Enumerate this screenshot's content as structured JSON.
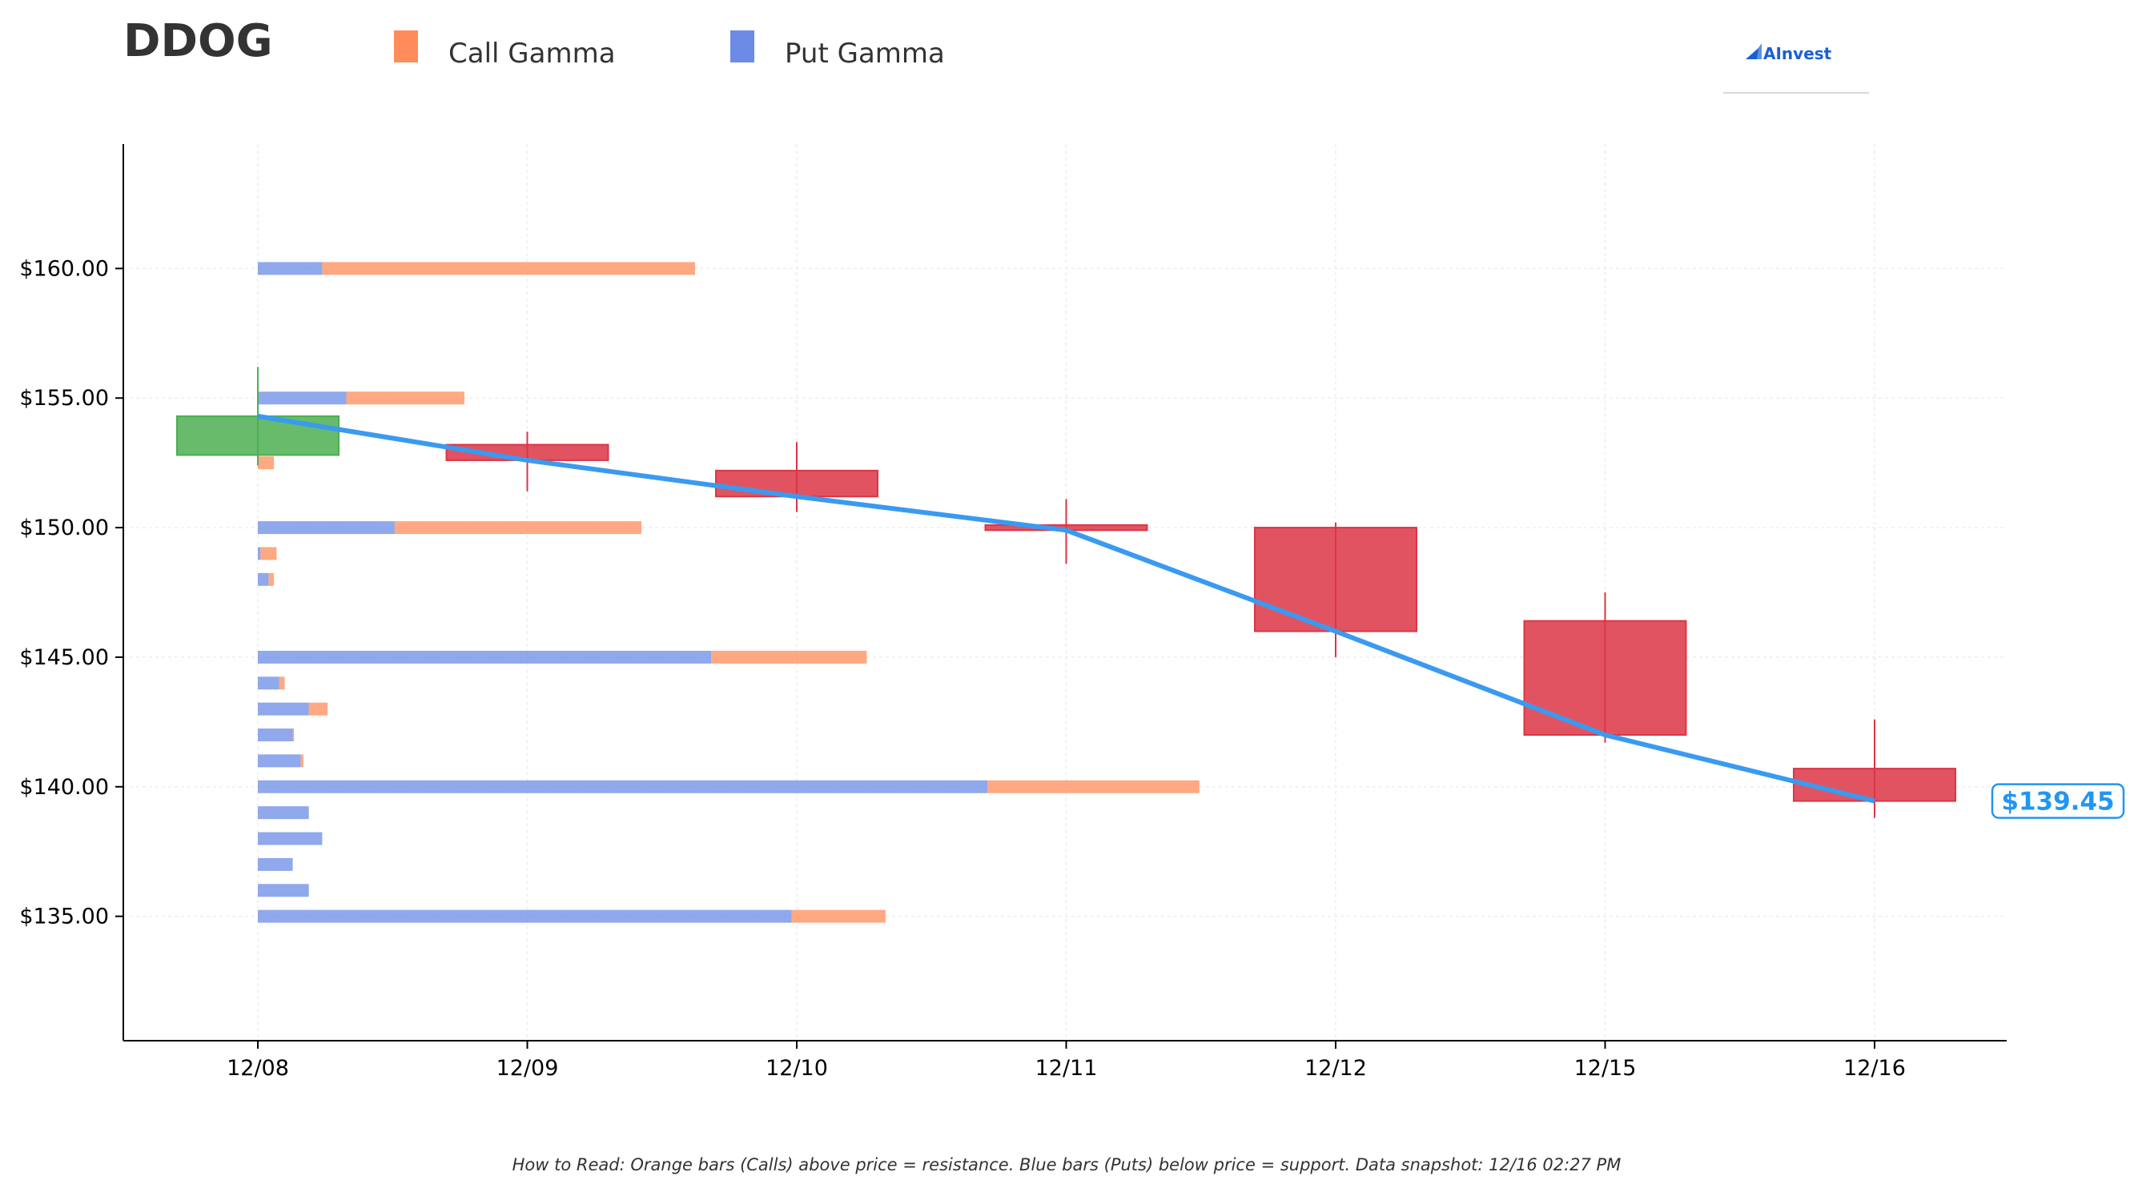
{
  "chart_data": {
    "type": "candlestick",
    "title": "DDOG",
    "legend": [
      {
        "label": "Call Gamma",
        "color": "#ff8c5a"
      },
      {
        "label": "Put Gamma",
        "color": "#6b8be6"
      }
    ],
    "logo_text": "AInvest",
    "footnote": "How to Read: Orange bars (Calls) above price = resistance. Blue bars (Puts) below price = support. Data snapshot: 12/16 02:27 PM",
    "current_price_label": "$139.45",
    "x_categories": [
      "12/08",
      "12/09",
      "12/10",
      "12/11",
      "12/12",
      "12/15",
      "12/16"
    ],
    "y_ticks": [
      135,
      140,
      145,
      150,
      155,
      160
    ],
    "y_tick_labels": [
      "$135.00",
      "$140.00",
      "$145.00",
      "$150.00",
      "$155.00",
      "$160.00"
    ],
    "ylim": [
      130.2,
      164.8
    ],
    "grid": true,
    "candles": [
      {
        "date": "12/08",
        "open": 152.8,
        "close": 154.3,
        "high": 156.2,
        "low": 152.4
      },
      {
        "date": "12/09",
        "open": 153.2,
        "close": 152.6,
        "high": 153.7,
        "low": 151.4
      },
      {
        "date": "12/10",
        "open": 152.2,
        "close": 151.2,
        "high": 153.3,
        "low": 150.6
      },
      {
        "date": "12/11",
        "open": 150.1,
        "close": 149.9,
        "high": 151.1,
        "low": 148.6
      },
      {
        "date": "12/12",
        "open": 150.0,
        "close": 146.0,
        "high": 150.2,
        "low": 145.0
      },
      {
        "date": "12/15",
        "open": 146.4,
        "close": 142.0,
        "high": 147.5,
        "low": 141.7
      },
      {
        "date": "12/16",
        "open": 140.7,
        "close": 139.45,
        "high": 142.6,
        "low": 138.8
      }
    ],
    "price_line": [
      {
        "date": "12/08",
        "price": 154.3
      },
      {
        "date": "12/09",
        "price": 152.6
      },
      {
        "date": "12/10",
        "price": 151.2
      },
      {
        "date": "12/11",
        "price": 149.9
      },
      {
        "date": "12/12",
        "price": 146.0
      },
      {
        "date": "12/15",
        "price": 142.0
      },
      {
        "date": "12/16",
        "price": 139.45
      }
    ],
    "gamma_bars": [
      {
        "strike": 160,
        "put": 0.24,
        "call": 1.39
      },
      {
        "strike": 155,
        "put": 0.33,
        "call": 0.44
      },
      {
        "strike": 152.5,
        "put": 0.0,
        "call": 0.06
      },
      {
        "strike": 150,
        "put": 0.51,
        "call": 0.92
      },
      {
        "strike": 149,
        "put": 0.01,
        "call": 0.06
      },
      {
        "strike": 148,
        "put": 0.04,
        "call": 0.02
      },
      {
        "strike": 145,
        "put": 1.69,
        "call": 0.58
      },
      {
        "strike": 144,
        "put": 0.08,
        "call": 0.02
      },
      {
        "strike": 143,
        "put": 0.19,
        "call": 0.07
      },
      {
        "strike": 142,
        "put": 0.13,
        "call": 0.005
      },
      {
        "strike": 141,
        "put": 0.16,
        "call": 0.01
      },
      {
        "strike": 140,
        "put": 2.72,
        "call": 0.79
      },
      {
        "strike": 139,
        "put": 0.19,
        "call": 0.0
      },
      {
        "strike": 138,
        "put": 0.24,
        "call": 0.0
      },
      {
        "strike": 137,
        "put": 0.13,
        "call": 0.0
      },
      {
        "strike": 136,
        "put": 0.19,
        "call": 0.0
      },
      {
        "strike": 135,
        "put": 1.99,
        "call": 0.35
      }
    ],
    "colors": {
      "up_candle": "#4caf50",
      "down_candle": "#dc3545",
      "price_line": "#3a9af0",
      "call_bar": "#ff8c5a",
      "put_bar": "#6b8be6",
      "axis": "#000000",
      "grid": "#eeeeee",
      "price_label": "#2196f3"
    }
  }
}
